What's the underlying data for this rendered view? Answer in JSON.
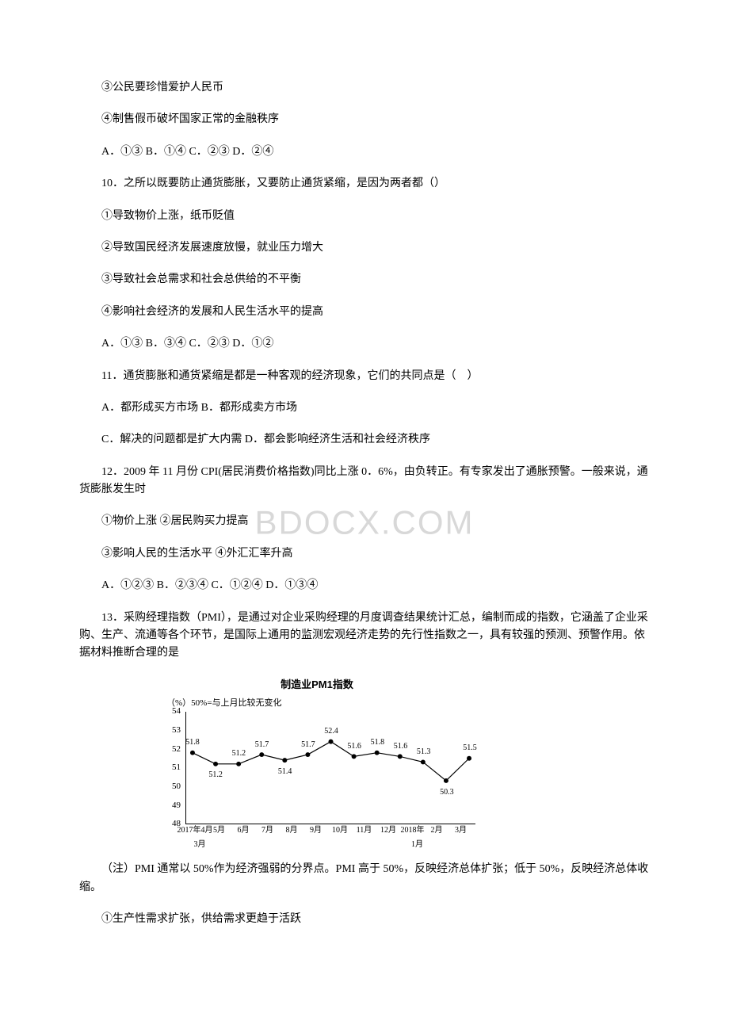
{
  "lines": {
    "l1": "③公民要珍惜爱护人民币",
    "l2": "④制售假币破坏国家正常的金融秩序",
    "l3": "A．①③ B．①④ C．②③ D．②④",
    "l4": "10．之所以既要防止通货膨胀，又要防止通货紧缩，是因为两者都（）",
    "l5": "①导致物价上涨，纸币贬值",
    "l6": "②导致国民经济发展速度放慢，就业压力增大",
    "l7": "③导致社会总需求和社会总供给的不平衡",
    "l8": "④影响社会经济的发展和人民生活水平的提高",
    "l9": "A．①③ B．③④ C．②③ D．①②",
    "l10": "11．通货膨胀和通货紧缩是都是一种客观的经济现象，它们的共同点是（　）",
    "l11": "A．都形成买方市场 B．都形成卖方市场",
    "l12": "C．解决的问题都是扩大内需 D．都会影响经济生活和社会经济秩序",
    "l13": "12．2009 年 11 月份 CPI(居民消费价格指数)同比上涨 0．6%，由负转正。有专家发出了通胀预警。一般来说，通货膨胀发生时",
    "l14": "①物价上涨 ②居民购买力提高",
    "l15": "③影响人民的生活水平 ④外汇汇率升高",
    "l16": "A．①②③ B．②③④ C．①②④ D．①③④",
    "l17": "13．采购经理指数（PMI），是通过对企业采购经理的月度调查结果统计汇总，编制而成的指数，它涵盖了企业采购、生产、流通等各个环节，是国际上通用的监测宏观经济走势的先行性指数之一，具有较强的预测、预警作用。依据材料推断合理的是",
    "note": "（注）PMI 通常以 50%作为经济强弱的分界点。PMI 高于 50%，反映经济总体扩张；低于 50%，反映经济总体收缩。",
    "l18": "①生产性需求扩张，供给需求更趋于活跃"
  },
  "watermark": "BDOCX.COM",
  "chart": {
    "title": "制造业PM1指数",
    "ylabel": "（%）50%=与上月比较无变化",
    "ylim": [
      48,
      54
    ],
    "yticks": [
      48,
      49,
      50,
      51,
      52,
      53,
      54
    ],
    "categories": [
      "2017年4月",
      "5月",
      "6月",
      "7月",
      "8月",
      "9月",
      "10月",
      "11月",
      "12月",
      "2018年",
      "2月",
      "3月"
    ],
    "categories_row2_left": "3月",
    "categories_row2_right": "1月",
    "values": [
      51.8,
      51.2,
      51.2,
      51.7,
      51.4,
      51.7,
      52.4,
      51.6,
      51.8,
      51.6,
      51.3,
      50.3,
      51.5
    ],
    "value_labels": [
      "51.8",
      "51.2",
      "51.2",
      "51.7",
      "51.4",
      "51.7",
      "52.4",
      "51.6",
      "51.8",
      "51.6",
      "51.3",
      "50.3",
      "51.5"
    ],
    "line_color": "#000000",
    "marker_color": "#000000",
    "background_color": "#ffffff",
    "marker_size": 3
  }
}
